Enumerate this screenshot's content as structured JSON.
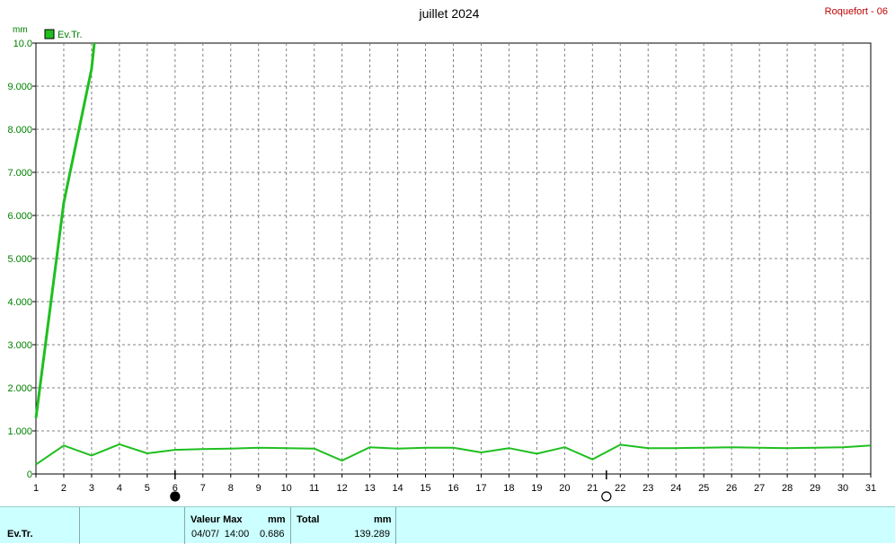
{
  "chart_data": {
    "type": "line",
    "title": "juillet 2024",
    "station": "Roquefort - 06",
    "ylabel": "mm",
    "ylim": [
      0,
      10
    ],
    "yticks": [
      "0",
      "1.000",
      "2.000",
      "3.000",
      "4.000",
      "5.000",
      "6.000",
      "7.000",
      "8.000",
      "9.000",
      "10.0"
    ],
    "xlim": [
      1,
      31
    ],
    "x": [
      1,
      2,
      3,
      4,
      5,
      6,
      7,
      8,
      9,
      10,
      11,
      12,
      13,
      14,
      15,
      16,
      17,
      18,
      19,
      20,
      21,
      22,
      23,
      24,
      25,
      26,
      27,
      28,
      29,
      30,
      31
    ],
    "grid": true,
    "legend_position": "top-left",
    "moon_phases": [
      {
        "day": 6,
        "phase": "new-moon"
      },
      {
        "day": 21.5,
        "phase": "full-moon"
      }
    ],
    "series": [
      {
        "name": "Ev.Tr.",
        "color": "#1fbf1f",
        "role": "cumulative",
        "x": [
          1,
          2,
          3,
          3.1
        ],
        "values": [
          1.3,
          6.3,
          9.4,
          10.0
        ]
      },
      {
        "name": "Ev.Tr.",
        "color": "#1fbf1f",
        "role": "daily",
        "x": [
          1,
          2,
          3,
          4,
          5,
          6,
          7,
          8,
          9,
          10,
          11,
          12,
          13,
          14,
          15,
          16,
          17,
          18,
          19,
          20,
          21,
          22,
          23,
          24,
          25,
          26,
          27,
          28,
          29,
          30,
          31
        ],
        "values": [
          0.22,
          0.66,
          0.43,
          0.69,
          0.48,
          0.56,
          0.58,
          0.59,
          0.61,
          0.6,
          0.59,
          0.31,
          0.62,
          0.59,
          0.61,
          0.61,
          0.5,
          0.6,
          0.47,
          0.62,
          0.34,
          0.68,
          0.6,
          0.6,
          0.61,
          0.62,
          0.61,
          0.6,
          0.61,
          0.62,
          0.66
        ]
      }
    ]
  },
  "legend": {
    "label": "Ev.Tr.",
    "color": "#1fbf1f"
  },
  "footer": {
    "row_label": "Ev.Tr.",
    "max_header": "Valeur Max",
    "max_unit": "mm",
    "max_date": "04/07/  14:00",
    "max_value": "0.686",
    "total_header": "Total",
    "total_unit": "mm",
    "total_value": "139.289"
  }
}
